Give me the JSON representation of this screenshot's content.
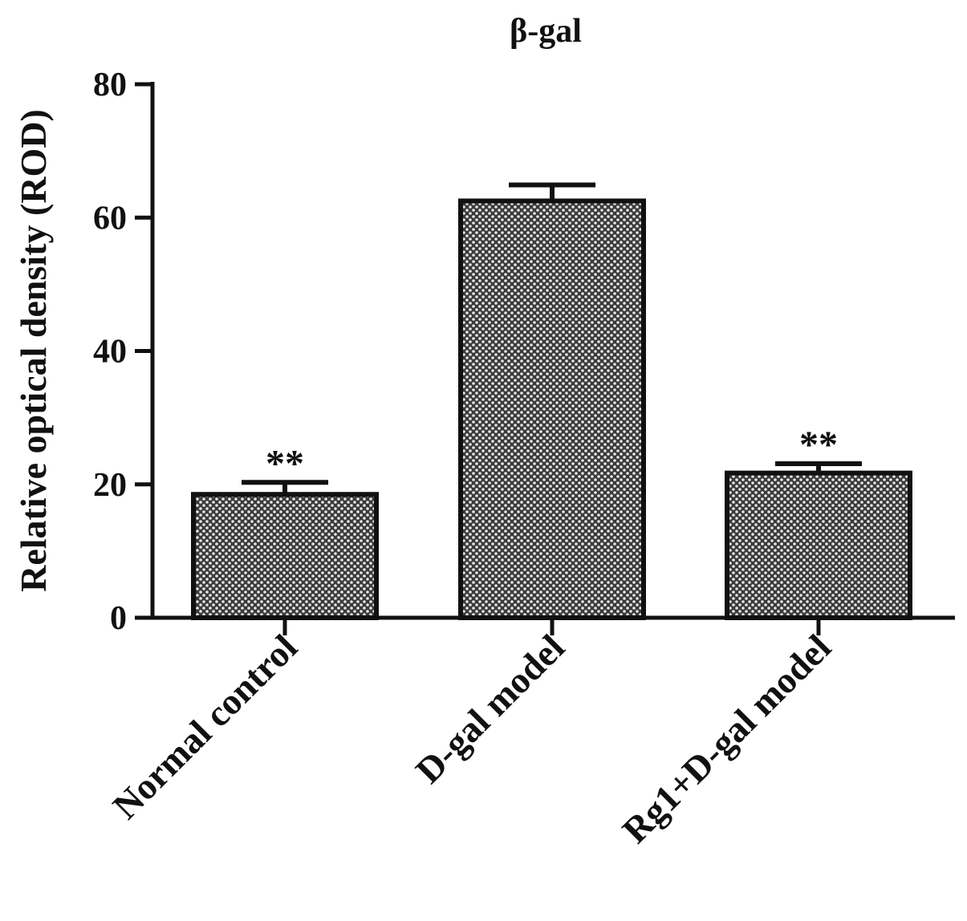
{
  "chart_data": {
    "type": "bar",
    "title": "β-gal",
    "xlabel": "",
    "ylabel": "Relative optical density (ROD)",
    "categories": [
      "Normal control",
      "D-gal model",
      "Rg1+D-gal model"
    ],
    "values": [
      18.5,
      62.5,
      21.7
    ],
    "errors": [
      1.8,
      2.4,
      1.4
    ],
    "annotations": [
      "**",
      "",
      "**"
    ],
    "ylim": [
      0,
      80
    ],
    "yticks": [
      0,
      20,
      40,
      60,
      80
    ],
    "grid": false,
    "legend": "none",
    "colors": {
      "bar_fill": "#9a9a9a",
      "bar_stroke": "#111111",
      "axis": "#111111"
    }
  }
}
